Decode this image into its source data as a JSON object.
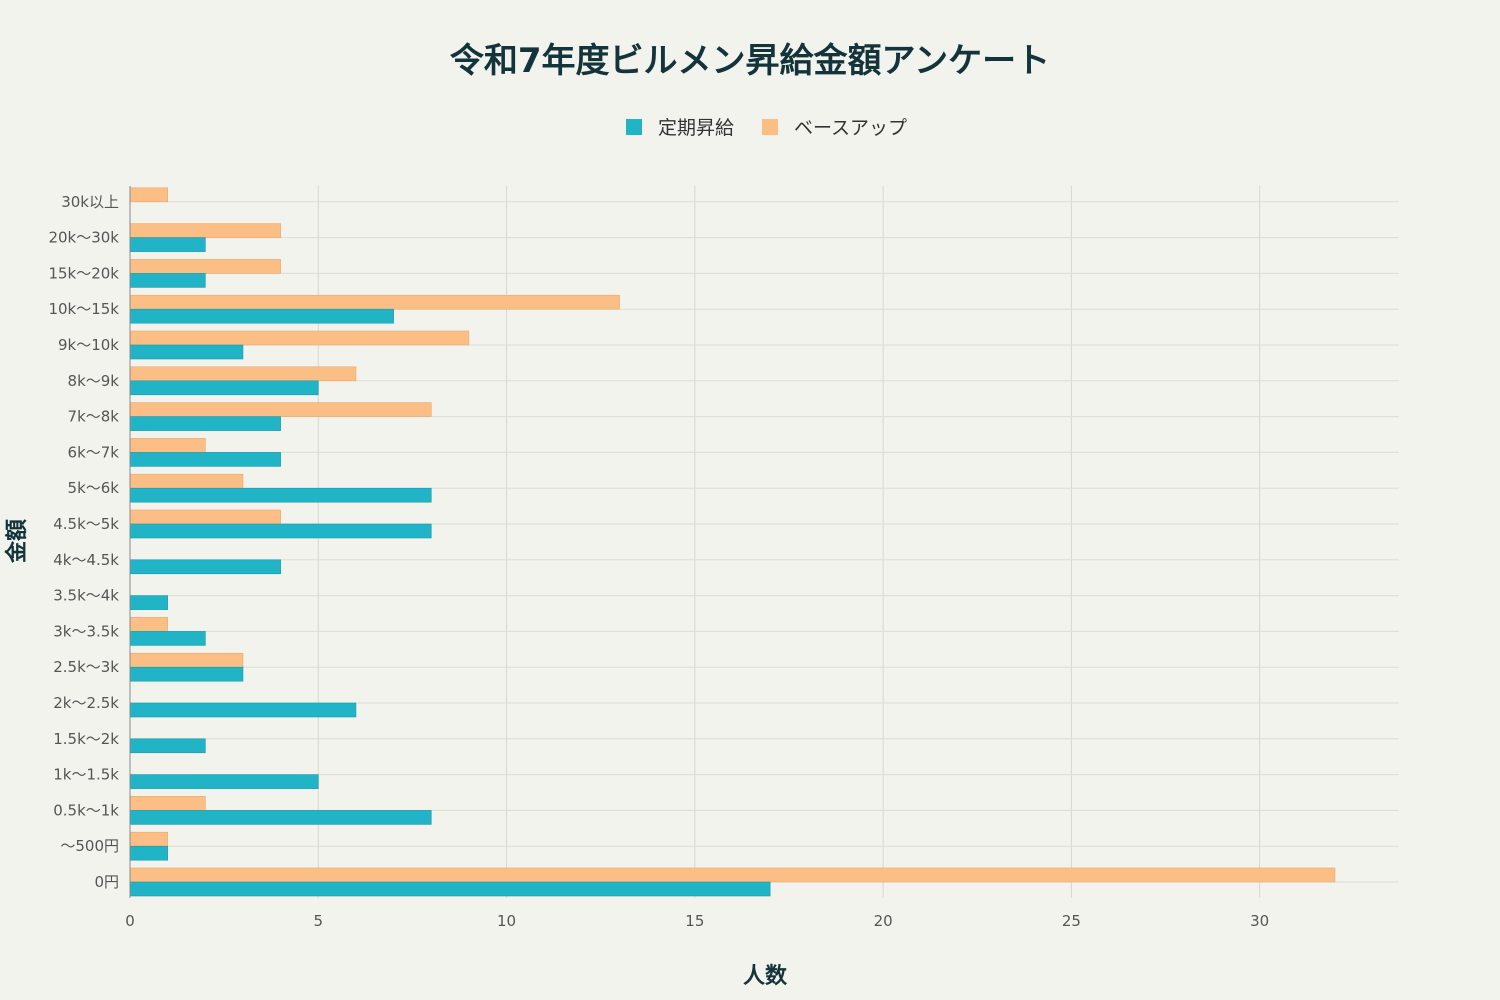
{
  "chart_data": {
    "type": "bar",
    "orientation": "horizontal",
    "title": "令和7年度ビルメン昇給金額アンケート",
    "xlabel": "人数",
    "ylabel": "金額",
    "categories": [
      "0円",
      "〜500円",
      "0.5k〜1k",
      "1k〜1.5k",
      "1.5k〜2k",
      "2k〜2.5k",
      "2.5k〜3k",
      "3k〜3.5k",
      "3.5k〜4k",
      "4k〜4.5k",
      "4.5k〜5k",
      "5k〜6k",
      "6k〜7k",
      "7k〜8k",
      "8k〜9k",
      "9k〜10k",
      "10k〜15k",
      "15k〜20k",
      "20k〜30k",
      "30k以上"
    ],
    "series": [
      {
        "name": "定期昇給",
        "color": "#20b4c6",
        "values": [
          17,
          1,
          8,
          5,
          2,
          6,
          3,
          2,
          1,
          4,
          8,
          8,
          4,
          4,
          5,
          3,
          7,
          2,
          2,
          0
        ]
      },
      {
        "name": "ベースアップ",
        "color": "#fbbf86",
        "values": [
          32,
          1,
          2,
          0,
          0,
          0,
          3,
          1,
          0,
          0,
          4,
          3,
          2,
          8,
          6,
          9,
          13,
          4,
          4,
          1
        ]
      }
    ],
    "xlim": [
      0,
      33.7
    ],
    "xticks": [
      0,
      5,
      10,
      15,
      20,
      25,
      30
    ],
    "grid": true,
    "legend_position": "top-center"
  }
}
